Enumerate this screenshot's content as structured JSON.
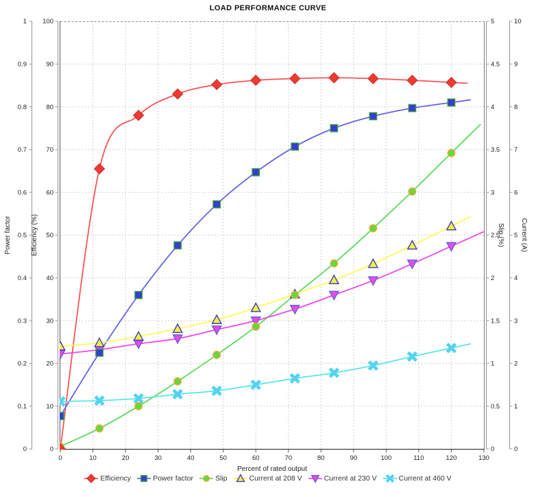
{
  "title": "LOAD PERFORMANCE CURVE",
  "chart_data": {
    "type": "line",
    "title": "LOAD PERFORMANCE CURVE",
    "xlabel": "Percent of rated output",
    "grid": true,
    "legend_position": "bottom",
    "x_axis": {
      "label": "Percent of rated output",
      "min": 0,
      "max": 130,
      "tick_step": 10
    },
    "y_axes": [
      {
        "id": "power_factor",
        "label": "Power factor",
        "min": 0,
        "max": 1,
        "tick_step": 0.1,
        "side": "left-outer"
      },
      {
        "id": "efficiency",
        "label": "Efficiency (%)",
        "min": 0,
        "max": 100,
        "tick_step": 10,
        "side": "left-inner"
      },
      {
        "id": "slip",
        "label": "Slip (%)",
        "min": 0,
        "max": 5,
        "tick_step": 0.5,
        "side": "right-inner"
      },
      {
        "id": "current",
        "label": "Current (A)",
        "min": 0,
        "max": 10,
        "tick_step": 1,
        "side": "right-outer"
      }
    ],
    "x": [
      0,
      12,
      24,
      36,
      48,
      60,
      72,
      84,
      96,
      108,
      120
    ],
    "series": [
      {
        "name": "Efficiency",
        "axis": "efficiency",
        "marker": "diamond",
        "line_color": "#f95353",
        "fill": "#ee3a30",
        "edge": "#cc2c2c",
        "values": [
          0,
          65.5,
          78,
          83,
          85.2,
          86.2,
          86.6,
          86.8,
          86.6,
          86.2,
          85.7
        ]
      },
      {
        "name": "Power factor",
        "axis": "power_factor",
        "marker": "square",
        "line_color": "#6262ea",
        "fill": "#3b3bd2",
        "edge": "#2fa43b",
        "values": [
          0.077,
          0.225,
          0.36,
          0.476,
          0.572,
          0.647,
          0.707,
          0.75,
          0.778,
          0.797,
          0.81
        ]
      },
      {
        "name": "Slip",
        "axis": "slip",
        "marker": "circle",
        "line_color": "#5cd95c",
        "fill": "#62d944",
        "edge": "#f2a824",
        "values": [
          0.03,
          0.24,
          0.5,
          0.79,
          1.1,
          1.43,
          1.8,
          2.17,
          2.58,
          3.01,
          3.46
        ]
      },
      {
        "name": "Current at 208 V",
        "axis": "current",
        "marker": "triangle-up",
        "line_color": "#ffff55",
        "fill": "#f2f243",
        "edge": "#3a3ac4",
        "values": [
          2.4,
          2.48,
          2.63,
          2.81,
          3.02,
          3.3,
          3.62,
          3.95,
          4.33,
          4.76,
          5.21
        ]
      },
      {
        "name": "Current at 230 V",
        "axis": "current",
        "marker": "triangle-down",
        "line_color": "#ee46ee",
        "fill": "#e84ae8",
        "edge": "#6262d2",
        "values": [
          2.22,
          2.32,
          2.46,
          2.58,
          2.79,
          3.0,
          3.27,
          3.6,
          3.94,
          4.33,
          4.74
        ]
      },
      {
        "name": "Current at 460 V",
        "axis": "current",
        "marker": "x",
        "line_color": "#58e6e6",
        "fill": "#55d2f0",
        "edge": "#55d2f0",
        "values": [
          1.11,
          1.13,
          1.18,
          1.28,
          1.36,
          1.5,
          1.65,
          1.78,
          1.95,
          2.16,
          2.36
        ]
      }
    ],
    "colors": {
      "grid": "#c0c0c0",
      "axis_line": "#999999",
      "border": "#555555",
      "tick_text": "#222222"
    }
  }
}
